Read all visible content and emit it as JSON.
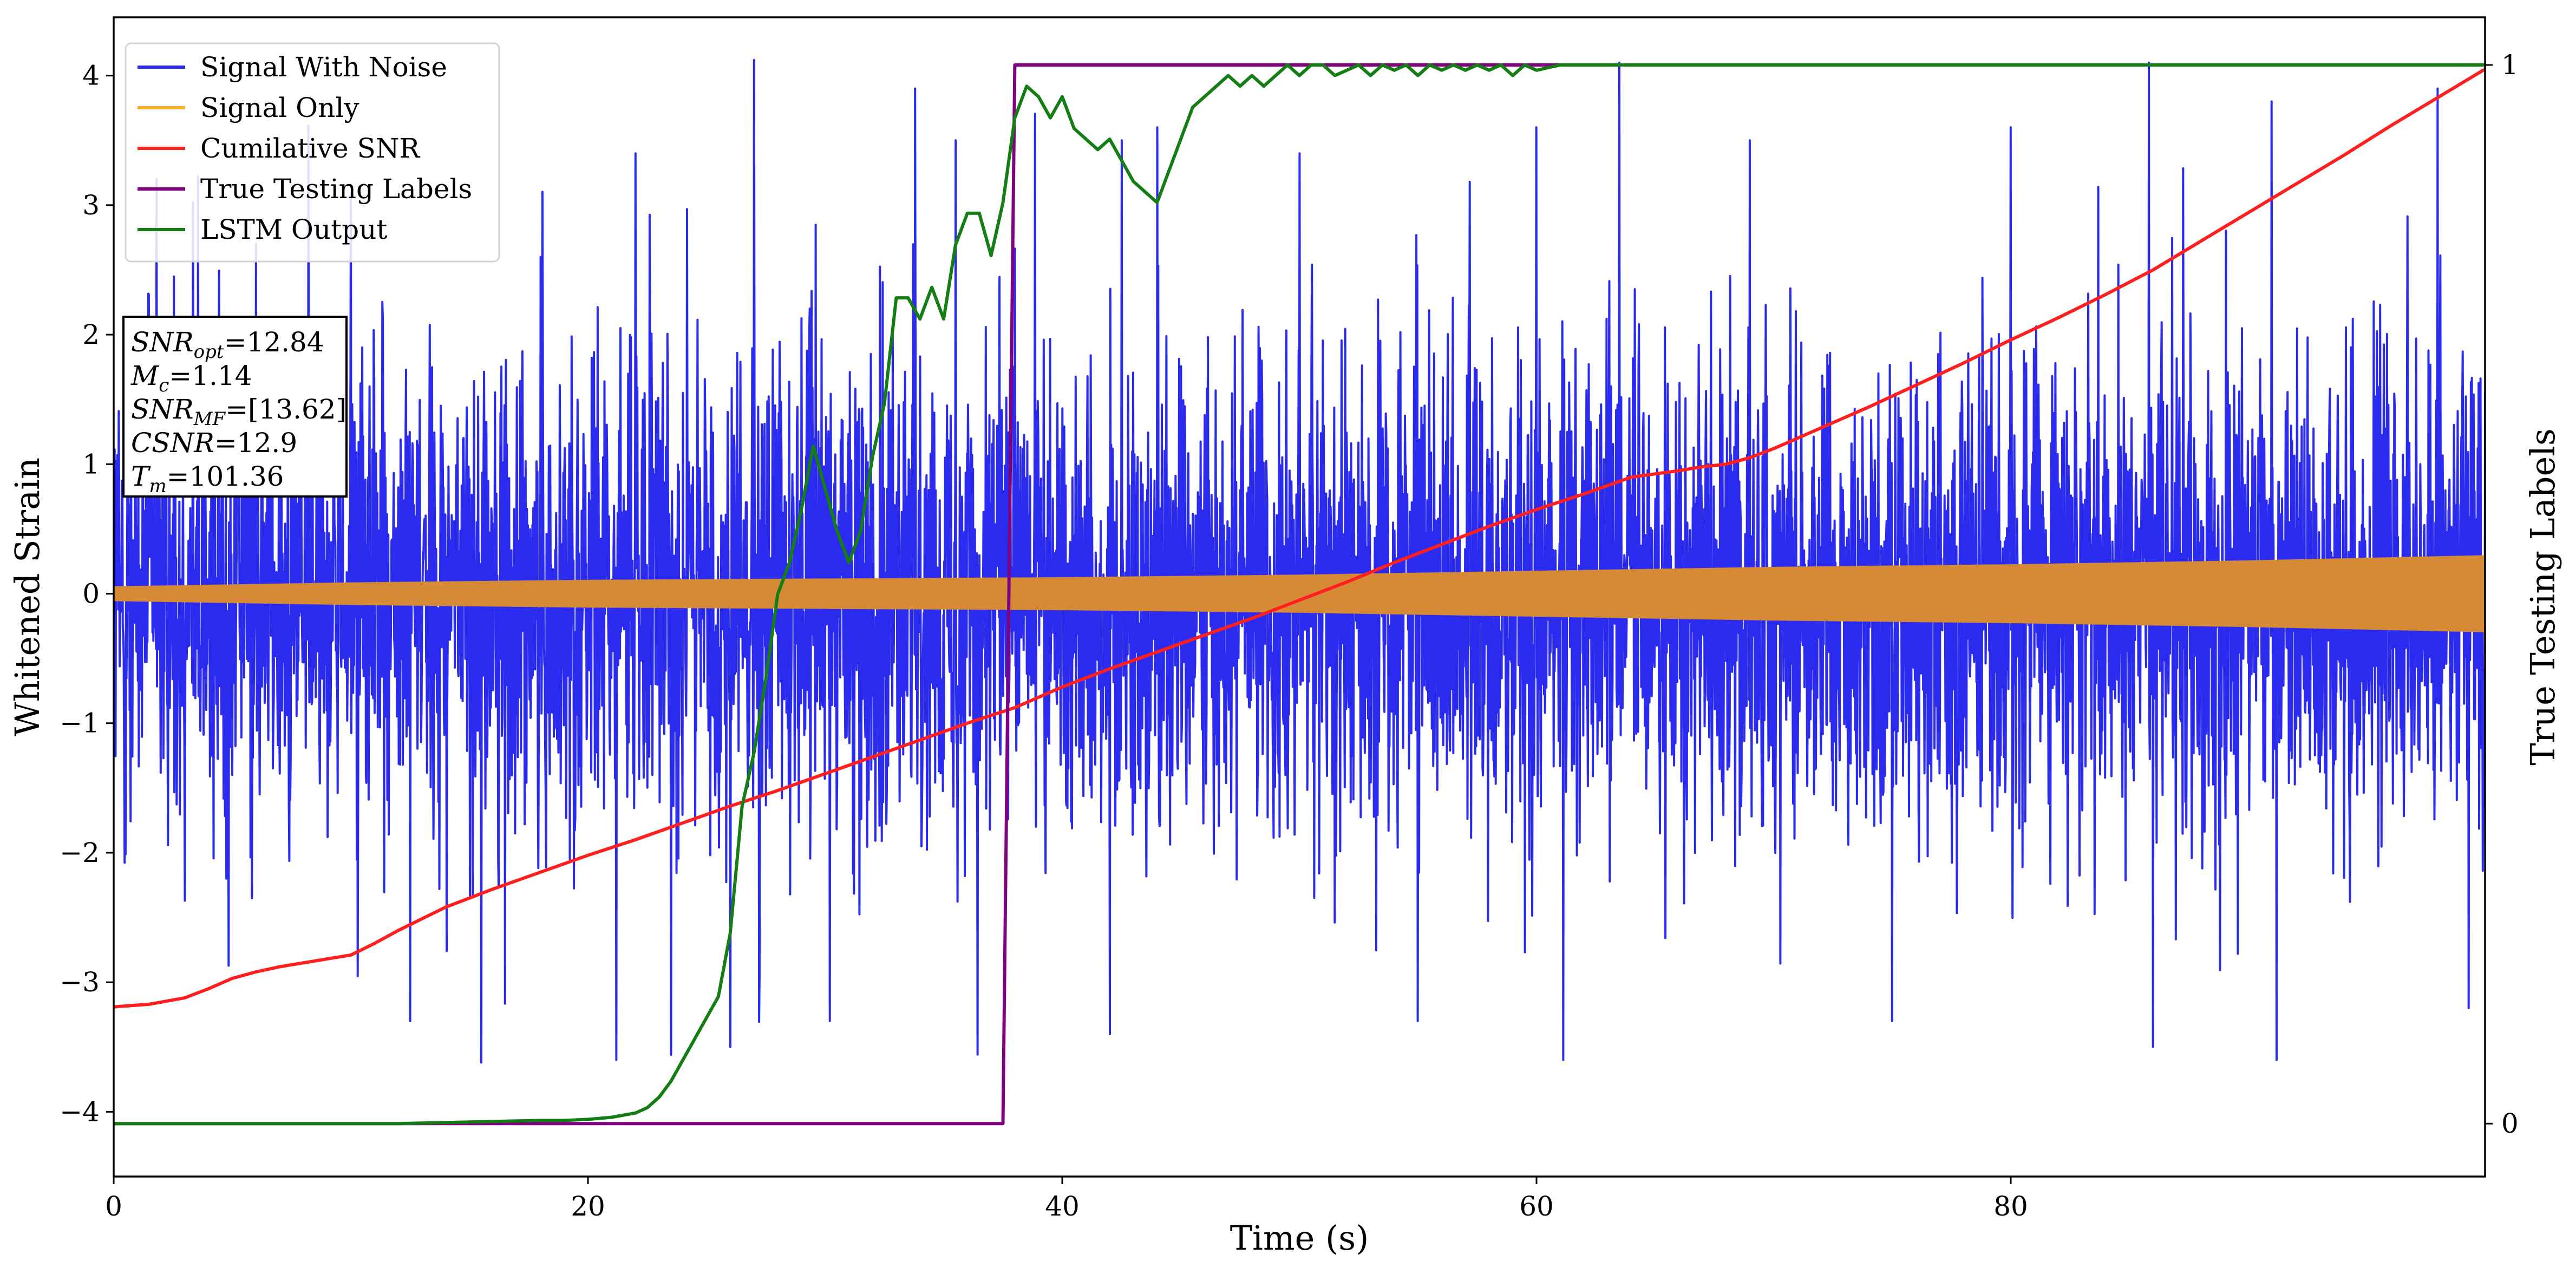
{
  "chart_data": {
    "type": "line",
    "xlabel": "Time (s)",
    "ylabel": "Whitened Strain",
    "y2label": "True Testing Labels",
    "xlim": [
      0,
      100
    ],
    "ylim": [
      -4.5,
      4.45
    ],
    "y2lim": [
      -0.05,
      1.045
    ],
    "xticks": [
      0,
      20,
      40,
      60,
      80
    ],
    "yticks": [
      -4,
      -3,
      -2,
      -1,
      0,
      1,
      2,
      3,
      4
    ],
    "y2ticks": [
      0,
      1
    ],
    "grid": false,
    "legend": {
      "position": "top-left",
      "entries": [
        "Signal With Noise",
        "Signal Only",
        "Cumilative SNR",
        "True Testing Labels",
        "LSTM Output"
      ]
    },
    "annotation": {
      "position": "left",
      "lines": [
        {
          "sym": "SNR",
          "sub": "opt",
          "value": "=12.84"
        },
        {
          "sym": "M",
          "sub": "c",
          "value": "=1.14"
        },
        {
          "sym": "SNR",
          "sub": "MF",
          "value": "=[13.62]"
        },
        {
          "sym": "CSNR",
          "sub": "",
          "value": "=12.9"
        },
        {
          "sym": "T",
          "sub": "m",
          "value": "=101.36"
        }
      ]
    },
    "series": [
      {
        "name": "Signal With Noise",
        "color": "#2b2bf0",
        "axis": "left",
        "kind": "noise",
        "sigma": 0.9,
        "range": [
          -3.6,
          4.1
        ],
        "spikes": [
          [
            1.8,
            3.2
          ],
          [
            6,
            2.7
          ],
          [
            10,
            3.1
          ],
          [
            12.5,
            -3.3
          ],
          [
            15.5,
            -3.62
          ],
          [
            18,
            2.6
          ],
          [
            22,
            3.4
          ],
          [
            26,
            -3.5
          ],
          [
            27,
            4.12
          ],
          [
            30.2,
            -3.3
          ],
          [
            33.8,
            3.9
          ],
          [
            35.5,
            3.5
          ],
          [
            42,
            -3.4
          ],
          [
            42.5,
            3.5
          ],
          [
            44,
            3.6
          ],
          [
            50,
            3.4
          ],
          [
            55,
            -3.3
          ],
          [
            60,
            3.6
          ],
          [
            63.5,
            4.1
          ],
          [
            69,
            3.5
          ],
          [
            75,
            -3.3
          ],
          [
            80,
            3.6
          ],
          [
            86,
            -3.5
          ],
          [
            91,
            3.8
          ],
          [
            98,
            3.9
          ],
          [
            99.3,
            -3.2
          ]
        ]
      },
      {
        "name": "Signal Only",
        "color": "#d68a36",
        "legend_color": "#f7b230",
        "axis": "left",
        "kind": "envelope",
        "amplitude": [
          [
            0,
            0.05
          ],
          [
            10,
            0.08
          ],
          [
            20,
            0.1
          ],
          [
            30,
            0.11
          ],
          [
            40,
            0.12
          ],
          [
            50,
            0.14
          ],
          [
            60,
            0.17
          ],
          [
            70,
            0.2
          ],
          [
            80,
            0.22
          ],
          [
            90,
            0.25
          ],
          [
            100,
            0.29
          ]
        ],
        "end_spike": -0.58
      },
      {
        "name": "Cumilative SNR",
        "color": "#ff1f1f",
        "axis": "left",
        "x": [
          0,
          1.5,
          3,
          4,
          5,
          6,
          7,
          8,
          9,
          10,
          11,
          12,
          14,
          16,
          18,
          20,
          22,
          24,
          26,
          28,
          30,
          32,
          34,
          36,
          38,
          40,
          42,
          44,
          46,
          48,
          50,
          52,
          54,
          56,
          58,
          60,
          62,
          64,
          66,
          67,
          68,
          69,
          70,
          72,
          74,
          76,
          78,
          80,
          82,
          84,
          86,
          88,
          90,
          92,
          94,
          96,
          98,
          100
        ],
        "y": [
          -3.19,
          -3.17,
          -3.12,
          -3.05,
          -2.97,
          -2.92,
          -2.88,
          -2.85,
          -2.82,
          -2.79,
          -2.7,
          -2.6,
          -2.42,
          -2.28,
          -2.15,
          -2.02,
          -1.9,
          -1.77,
          -1.64,
          -1.52,
          -1.39,
          -1.26,
          -1.13,
          -1.0,
          -0.88,
          -0.72,
          -0.58,
          -0.45,
          -0.32,
          -0.19,
          -0.05,
          0.09,
          0.24,
          0.38,
          0.52,
          0.65,
          0.77,
          0.9,
          0.95,
          0.98,
          1.0,
          1.05,
          1.12,
          1.28,
          1.44,
          1.61,
          1.78,
          1.96,
          2.13,
          2.31,
          2.5,
          2.72,
          2.94,
          3.16,
          3.38,
          3.61,
          3.83,
          4.05
        ]
      },
      {
        "name": "True Testing Labels",
        "color": "#800080",
        "axis": "right",
        "x": [
          0,
          37.5,
          38.0,
          100
        ],
        "y": [
          0,
          0,
          1,
          1
        ]
      },
      {
        "name": "LSTM Output",
        "color": "#147d14",
        "axis": "right",
        "x": [
          0,
          10,
          12,
          14,
          16,
          18,
          19,
          20,
          20.5,
          21,
          21.5,
          22,
          22.5,
          23,
          23.5,
          24,
          24.5,
          25,
          25.5,
          26,
          26.5,
          27,
          27.5,
          28,
          28.5,
          29,
          29.5,
          30,
          30.5,
          31,
          31.5,
          32,
          32.5,
          33,
          33.5,
          34,
          34.5,
          35,
          35.5,
          36,
          36.5,
          37,
          37.5,
          38,
          38.5,
          39,
          39.5,
          40,
          40.5,
          41,
          41.5,
          42,
          42.5,
          43,
          43.5,
          44,
          44.5,
          45,
          45.5,
          46,
          46.5,
          47,
          47.5,
          48,
          48.5,
          49,
          49.5,
          50,
          50.5,
          51,
          51.5,
          52,
          52.5,
          53,
          53.5,
          54,
          54.5,
          55,
          55.5,
          56,
          56.5,
          57,
          57.5,
          58,
          58.5,
          59,
          59.5,
          60,
          61,
          62,
          63,
          64,
          65,
          66,
          68,
          70,
          75,
          80,
          85,
          90,
          95,
          100
        ],
        "y": [
          0,
          0,
          0,
          0.001,
          0.002,
          0.003,
          0.003,
          0.004,
          0.005,
          0.006,
          0.008,
          0.01,
          0.015,
          0.025,
          0.04,
          0.06,
          0.08,
          0.1,
          0.12,
          0.18,
          0.3,
          0.35,
          0.42,
          0.5,
          0.53,
          0.58,
          0.64,
          0.6,
          0.56,
          0.53,
          0.56,
          0.63,
          0.68,
          0.78,
          0.78,
          0.76,
          0.79,
          0.76,
          0.83,
          0.86,
          0.86,
          0.82,
          0.87,
          0.95,
          0.98,
          0.97,
          0.95,
          0.97,
          0.94,
          0.93,
          0.92,
          0.93,
          0.91,
          0.89,
          0.88,
          0.87,
          0.9,
          0.93,
          0.96,
          0.97,
          0.98,
          0.99,
          0.98,
          0.99,
          0.98,
          0.99,
          1.0,
          0.99,
          1.0,
          1.0,
          0.99,
          0.995,
          1.0,
          0.99,
          1.0,
          0.995,
          1.0,
          0.99,
          1.0,
          0.995,
          1.0,
          0.995,
          1.0,
          0.995,
          1.0,
          0.99,
          1.0,
          0.995,
          1.0,
          1.0,
          1.0,
          1.0,
          1.0,
          1.0,
          1.0,
          1.0,
          1.0,
          1.0,
          1.0,
          1.0,
          1.0,
          1.0
        ]
      }
    ]
  }
}
